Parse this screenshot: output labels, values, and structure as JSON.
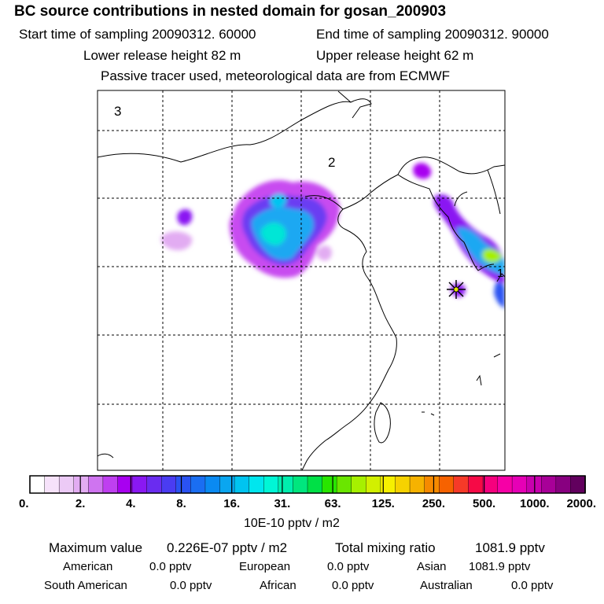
{
  "header": {
    "title": "BC  source contributions in nested domain for gosan_200903",
    "start_time": "Start time of sampling 20090312. 60000",
    "end_time": "End time of sampling 20090312. 90000",
    "lower_height": "Lower release height   82 m",
    "upper_height": "Upper release height   62 m",
    "tracer_note": "Passive tracer used, meteorological data are from ECMWF"
  },
  "map": {
    "region_labels": [
      "3",
      "2",
      "1"
    ],
    "receptor": "gosan"
  },
  "colorbar": {
    "ticks": [
      "0.",
      "2.",
      "4.",
      "8.",
      "16.",
      "31.",
      "63.",
      "125.",
      "250.",
      "500.",
      "1000.",
      "2000."
    ],
    "units": "10E-10 pptv / m2",
    "colors": [
      "#ffffff",
      "#f6e2fa",
      "#eccaf6",
      "#e2acf2",
      "#cf74f0",
      "#bf3ff0",
      "#a800f0",
      "#8a18f2",
      "#6a2cf0",
      "#4a3cf2",
      "#2a52f2",
      "#1a6ef2",
      "#0a8af2",
      "#0aa6f0",
      "#00c4f0",
      "#00e6ee",
      "#00f6d6",
      "#00eeae",
      "#00e67e",
      "#00e046",
      "#28e600",
      "#6ae600",
      "#a6f000",
      "#d2f000",
      "#f6f000",
      "#f6d200",
      "#f6b200",
      "#f68a00",
      "#f66200",
      "#f63a28",
      "#f60a46",
      "#f6007e",
      "#f600a6",
      "#e600b6",
      "#c800ae",
      "#a80098",
      "#880080",
      "#62005e"
    ]
  },
  "stats": {
    "max_label": "Maximum value",
    "max_value": "0.226E-07 pptv / m2",
    "total_label": "Total mixing ratio",
    "total_value": "1081.9 pptv",
    "regions": [
      {
        "label": "American",
        "value": "0.0 pptv"
      },
      {
        "label": "European",
        "value": "0.0 pptv"
      },
      {
        "label": "Asian",
        "value": "1081.9 pptv"
      },
      {
        "label": "South American",
        "value": "0.0 pptv"
      },
      {
        "label": "African",
        "value": "0.0 pptv"
      },
      {
        "label": "Australian",
        "value": "0.0 pptv"
      }
    ]
  }
}
